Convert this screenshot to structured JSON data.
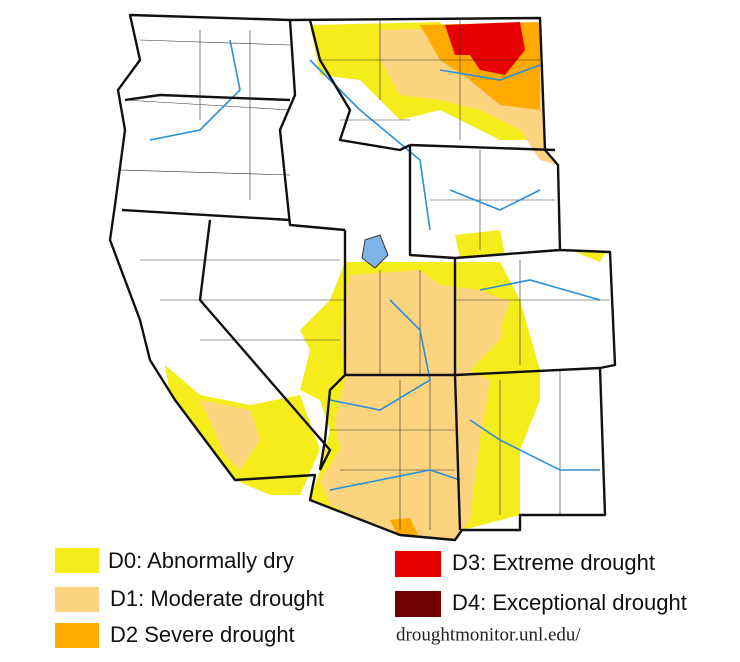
{
  "legend": [
    {
      "label": "D0: Abnormally dry",
      "color": "#f5ec1c"
    },
    {
      "label": "D1: Moderate drought",
      "color": "#fcd37f"
    },
    {
      "label": "D2 Severe drought",
      "color": "#ffaa00"
    },
    {
      "label": "D3: Extreme drought",
      "color": "#e60000"
    },
    {
      "label": "D4: Exceptional drought",
      "color": "#730000"
    }
  ],
  "source": "droughtmonitor.unl.edu/"
}
